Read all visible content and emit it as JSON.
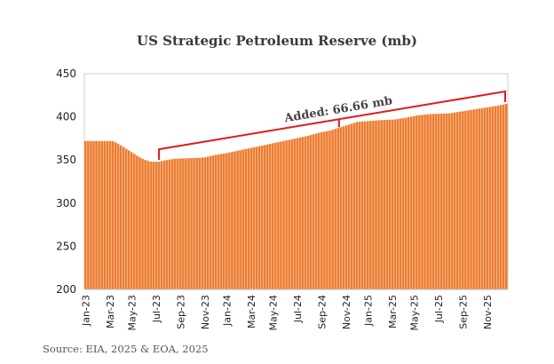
{
  "chart_data": {
    "type": "bar",
    "title": "US Strategic Petroleum Reserve (mb)",
    "xlabel": "",
    "ylabel": "",
    "ylim": [
      200,
      450
    ],
    "yticks": [
      200,
      250,
      300,
      350,
      400,
      450
    ],
    "grid": false,
    "bar_color": "#ED7D31",
    "annotation": {
      "label": "Added: 66.66 mb",
      "color": "#E11A1A",
      "start_week": 27,
      "end_week": 154
    },
    "x_tick_labels": [
      "Jan-23",
      "Mar-23",
      "May-23",
      "Jul-23",
      "Sep-23",
      "Nov-23",
      "Jan-24",
      "Mar-24",
      "May-24",
      "Jul-24",
      "Sep-24",
      "Nov-24",
      "Jan-25",
      "Mar-25",
      "May-25",
      "Jul-25",
      "Sep-25",
      "Nov-25"
    ],
    "x_tick_weeks": [
      0,
      9,
      17,
      26,
      35,
      44,
      52,
      61,
      69,
      78,
      87,
      96,
      104,
      113,
      121,
      130,
      139,
      148
    ],
    "weekly_keypoints": [
      [
        0,
        372
      ],
      [
        10,
        372
      ],
      [
        12,
        369
      ],
      [
        14,
        365
      ],
      [
        17,
        359
      ],
      [
        20,
        353
      ],
      [
        22,
        350
      ],
      [
        24,
        348
      ],
      [
        27,
        348
      ],
      [
        30,
        350
      ],
      [
        33,
        351.5
      ],
      [
        38,
        352
      ],
      [
        42,
        352.5
      ],
      [
        44,
        353
      ],
      [
        48,
        356
      ],
      [
        52,
        358
      ],
      [
        58,
        362
      ],
      [
        64,
        366
      ],
      [
        70,
        370
      ],
      [
        76,
        374
      ],
      [
        82,
        378
      ],
      [
        86,
        381.5
      ],
      [
        90,
        384
      ],
      [
        94,
        388
      ],
      [
        98,
        392
      ],
      [
        100,
        394
      ],
      [
        104,
        395
      ],
      [
        108,
        396
      ],
      [
        114,
        397
      ],
      [
        118,
        399
      ],
      [
        122,
        401.5
      ],
      [
        126,
        403
      ],
      [
        134,
        404
      ],
      [
        140,
        407
      ],
      [
        146,
        410
      ],
      [
        152,
        413
      ],
      [
        155,
        415
      ]
    ],
    "n_weeks": 156
  },
  "source": "Source: EIA, 2025 & EOA, 2025"
}
